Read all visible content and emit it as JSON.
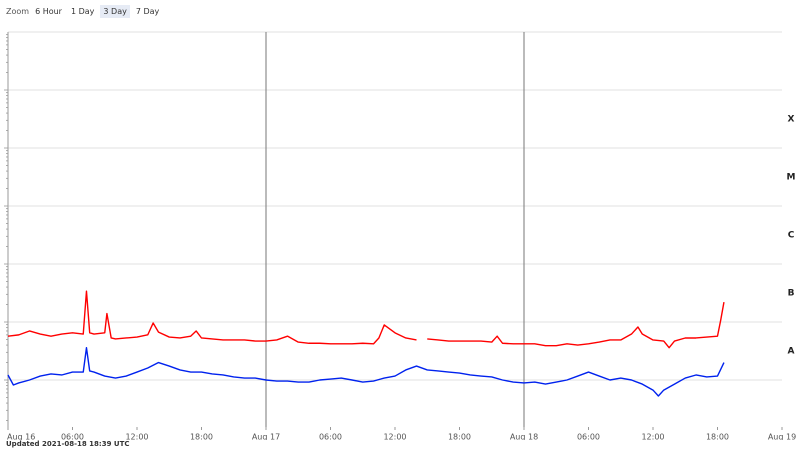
{
  "zoom": {
    "label": "Zoom",
    "buttons": [
      "6 Hour",
      "1 Day",
      "3 Day",
      "7 Day"
    ],
    "active": 2
  },
  "footer": "Updated 2021-08-18 18:39 UTC",
  "chart_data": {
    "type": "line",
    "log": true,
    "grid": true,
    "xlim": [
      0,
      72
    ],
    "xticks": [
      {
        "value": 0,
        "label": "Aug 16"
      },
      {
        "value": 6,
        "label": "06:00"
      },
      {
        "value": 12,
        "label": "12:00"
      },
      {
        "value": 18,
        "label": "18:00"
      },
      {
        "value": 24,
        "label": "Aug 17"
      },
      {
        "value": 30,
        "label": "06:00"
      },
      {
        "value": 36,
        "label": "12:00"
      },
      {
        "value": 42,
        "label": "18:00"
      },
      {
        "value": 48,
        "label": "Aug 18"
      },
      {
        "value": 54,
        "label": "06:00"
      },
      {
        "value": 60,
        "label": "12:00"
      },
      {
        "value": 66,
        "label": "18:00"
      },
      {
        "value": 72,
        "label": "Aug 19"
      }
    ],
    "ylim": [
      1e-09,
      0.01
    ],
    "ygrid": [
      1e-08,
      1e-07,
      1e-06,
      1e-05,
      0.0001,
      0.001,
      0.01
    ],
    "flare_classes": [
      {
        "label": "A",
        "value": 1e-08
      },
      {
        "label": "B",
        "value": 1e-07
      },
      {
        "label": "C",
        "value": 1e-06
      },
      {
        "label": "M",
        "value": 1e-05
      },
      {
        "label": "X",
        "value": 0.0001
      }
    ],
    "series": [
      {
        "color": "#ff0000",
        "x": [
          0,
          1,
          2,
          3,
          4,
          5,
          6,
          7,
          7.3,
          7.6,
          8,
          9,
          9.2,
          9.6,
          10,
          11,
          12,
          13,
          13.5,
          14,
          15,
          16,
          17,
          17.5,
          18,
          19,
          20,
          21,
          22,
          23,
          24,
          25,
          26,
          27,
          28,
          29,
          30,
          31,
          32,
          33,
          34,
          34.5,
          35,
          36,
          37,
          38,
          38.5,
          39,
          40,
          41,
          42,
          43,
          44,
          45,
          45.5,
          46,
          47,
          48,
          49,
          50,
          51,
          52,
          53,
          54,
          55,
          56,
          57,
          58,
          58.6,
          59,
          60,
          61,
          61.5,
          62,
          63,
          64,
          65,
          66,
          66.3,
          66.6
        ],
        "values": [
          5.7e-08,
          6e-08,
          7e-08,
          6.2e-08,
          5.7e-08,
          6.2e-08,
          6.5e-08,
          6.2e-08,
          3.4e-07,
          6.5e-08,
          6.2e-08,
          6.5e-08,
          1.4e-07,
          5.3e-08,
          5.1e-08,
          5.3e-08,
          5.5e-08,
          6e-08,
          9.6e-08,
          6.7e-08,
          5.5e-08,
          5.3e-08,
          5.7e-08,
          7e-08,
          5.3e-08,
          5.1e-08,
          4.9e-08,
          4.9e-08,
          4.9e-08,
          4.7e-08,
          4.7e-08,
          4.9e-08,
          5.7e-08,
          4.5e-08,
          4.3e-08,
          4.3e-08,
          4.2e-08,
          4.2e-08,
          4.2e-08,
          4.3e-08,
          4.2e-08,
          5.3e-08,
          8.9e-08,
          6.5e-08,
          5.3e-08,
          4.9e-08,
          null,
          5.1e-08,
          4.9e-08,
          4.7e-08,
          4.7e-08,
          4.7e-08,
          4.7e-08,
          4.5e-08,
          5.7e-08,
          4.3e-08,
          4.2e-08,
          4.2e-08,
          4.2e-08,
          3.9e-08,
          3.9e-08,
          4.2e-08,
          4e-08,
          4.2e-08,
          4.5e-08,
          4.9e-08,
          4.9e-08,
          6.2e-08,
          8.2e-08,
          6.2e-08,
          4.9e-08,
          4.7e-08,
          3.6e-08,
          4.7e-08,
          5.3e-08,
          5.3e-08,
          5.5e-08,
          5.7e-08,
          1.08e-07,
          2.2e-07
        ]
      },
      {
        "color": "#0022ee",
        "x": [
          0,
          0.5,
          1,
          2,
          3,
          4,
          5,
          6,
          7,
          7.3,
          7.6,
          8,
          9,
          10,
          11,
          12,
          13,
          14,
          15,
          16,
          17,
          18,
          19,
          20,
          21,
          22,
          23,
          24,
          25,
          26,
          27,
          28,
          29,
          30,
          31,
          32,
          33,
          34,
          35,
          36,
          37,
          38,
          39,
          40,
          41,
          42,
          43,
          44,
          45,
          46,
          47,
          48,
          49,
          50,
          51,
          52,
          53,
          54,
          55,
          56,
          57,
          58,
          59,
          60,
          60.5,
          61,
          62,
          63,
          64,
          65,
          66,
          66.6
        ],
        "values": [
          1.22e-08,
          8.2e-09,
          8.9e-09,
          1e-08,
          1.17e-08,
          1.27e-08,
          1.22e-08,
          1.37e-08,
          1.37e-08,
          3.6e-08,
          1.43e-08,
          1.37e-08,
          1.17e-08,
          1.08e-08,
          1.17e-08,
          1.37e-08,
          1.61e-08,
          2e-08,
          1.74e-08,
          1.49e-08,
          1.37e-08,
          1.37e-08,
          1.27e-08,
          1.22e-08,
          1.13e-08,
          1.08e-08,
          1.08e-08,
          1e-08,
          9.6e-09,
          9.6e-09,
          9.2e-09,
          9.2e-09,
          1e-08,
          1.04e-08,
          1.08e-08,
          1e-08,
          9.2e-09,
          9.6e-09,
          1.08e-08,
          1.17e-08,
          1.49e-08,
          1.74e-08,
          1.49e-08,
          1.43e-08,
          1.37e-08,
          1.32e-08,
          1.22e-08,
          1.17e-08,
          1.13e-08,
          1e-08,
          9.2e-09,
          8.9e-09,
          9.2e-09,
          8.5e-09,
          9.2e-09,
          1e-08,
          1.17e-08,
          1.37e-08,
          1.17e-08,
          1e-08,
          1.08e-08,
          1e-08,
          8.5e-09,
          6.7e-09,
          5.3e-09,
          6.7e-09,
          8.5e-09,
          1.08e-08,
          1.22e-08,
          1.13e-08,
          1.17e-08,
          2e-08
        ]
      }
    ]
  }
}
